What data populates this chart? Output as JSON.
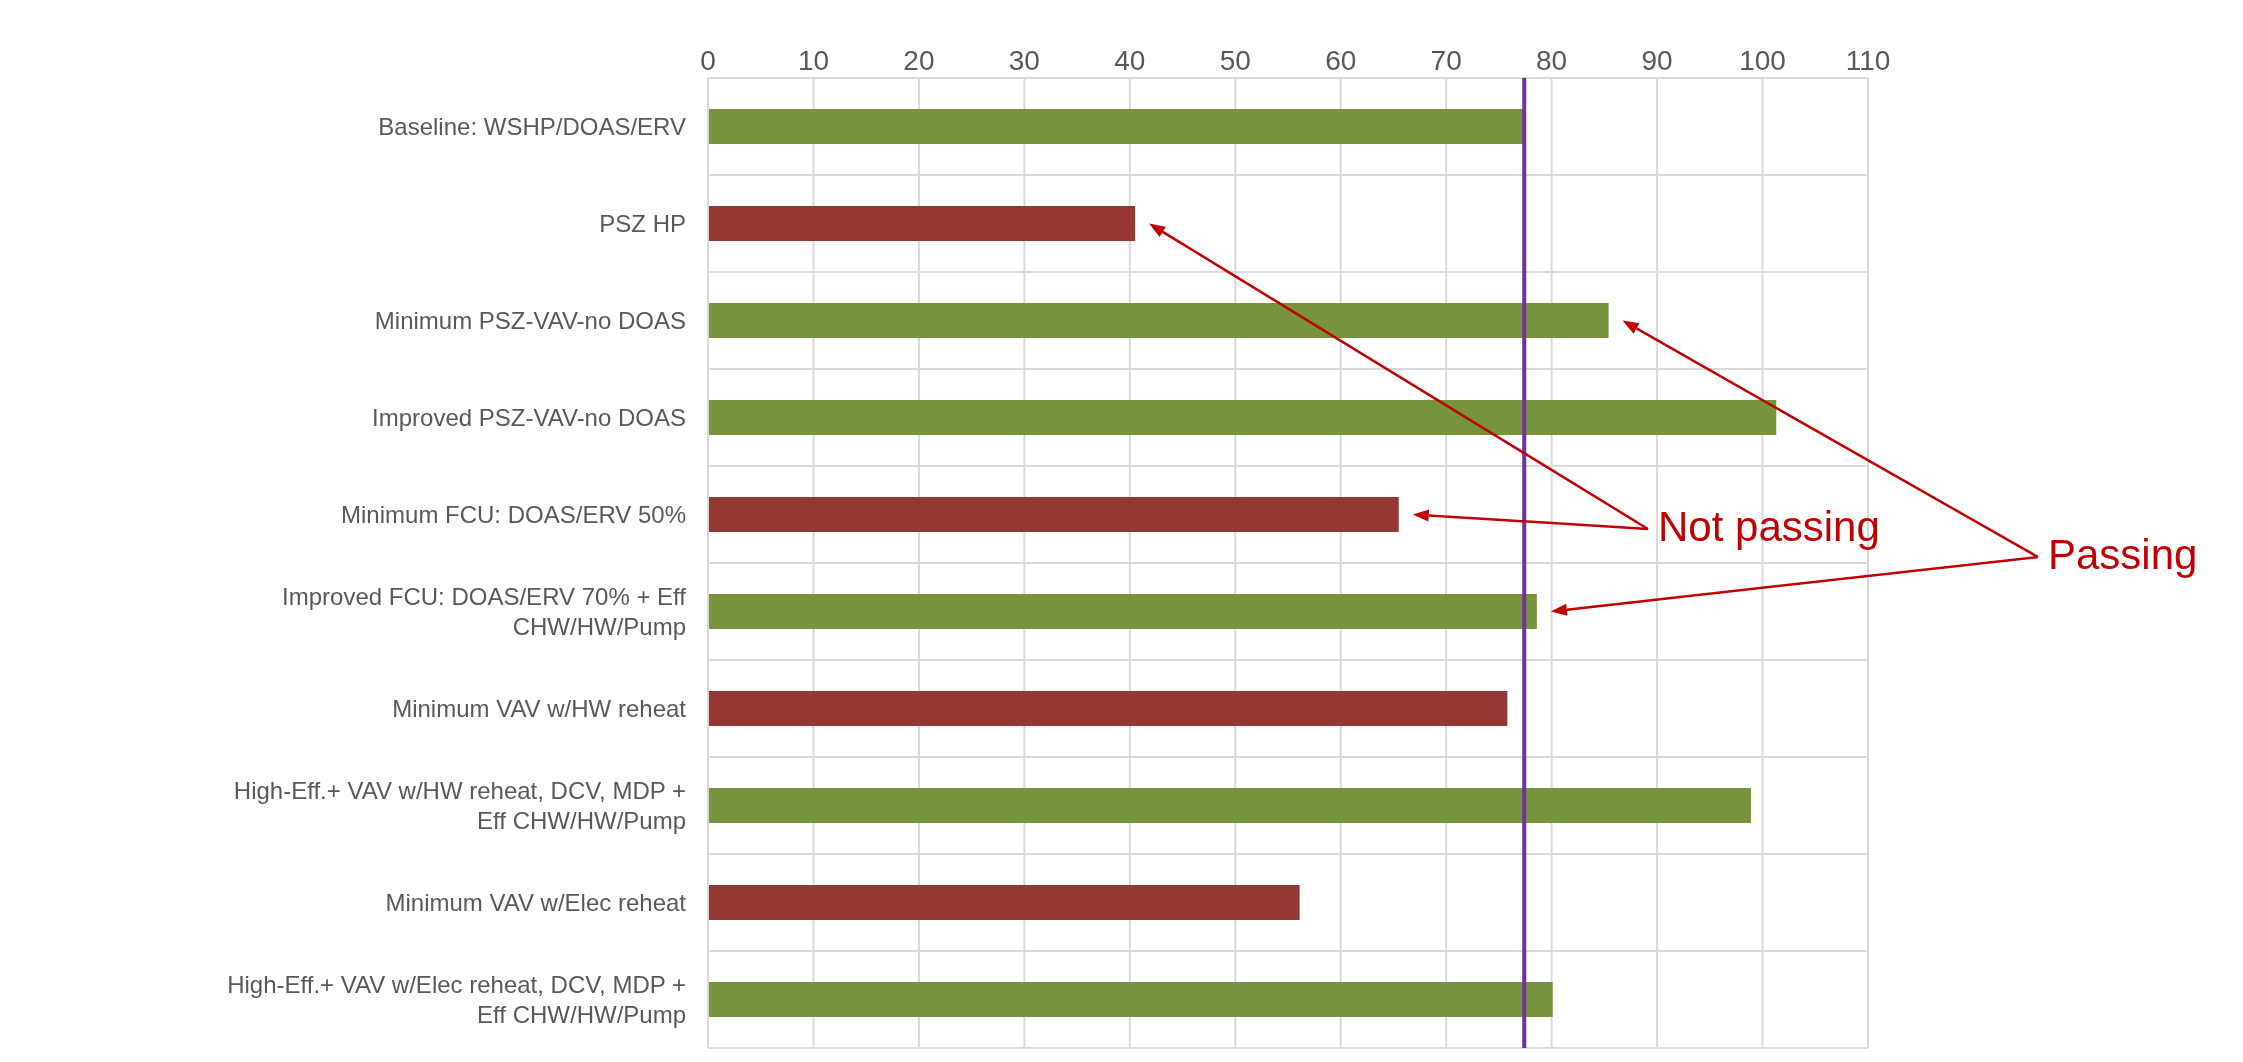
{
  "chart_data": {
    "type": "bar",
    "orientation": "horizontal",
    "categories": [
      "Baseline: WSHP/DOAS/ERV",
      "PSZ HP",
      "Minimum PSZ-VAV-no DOAS",
      "Improved PSZ-VAV-no DOAS",
      "Minimum FCU: DOAS/ERV 50%",
      "Improved FCU: DOAS/ERV 70% + Eff CHW/HW/Pump",
      "Minimum VAV w/HW reheat",
      "High-Eff.+ VAV w/HW reheat, DCV, MDP + Eff CHW/HW/Pump",
      "Minimum VAV w/Elec reheat",
      "High-Eff.+ VAV w/Elec reheat, DCV, MDP + Eff CHW/HW/Pump"
    ],
    "values": [
      77.3,
      40.5,
      85.4,
      101.3,
      65.5,
      78.6,
      75.8,
      98.9,
      56.1,
      80.1
    ],
    "colors": [
      "#77933c",
      "#953735",
      "#77933c",
      "#77933c",
      "#953735",
      "#77933c",
      "#953735",
      "#77933c",
      "#953735",
      "#77933c"
    ],
    "xlim": [
      0,
      110
    ],
    "xticks": [
      0,
      10,
      20,
      30,
      40,
      50,
      60,
      70,
      80,
      90,
      100,
      110
    ],
    "grid": true,
    "ref_lines": [
      {
        "axis": "x",
        "value": 77.4,
        "color": "#7030a0"
      }
    ],
    "annotations": [
      "Not passing",
      "Passing"
    ]
  }
}
